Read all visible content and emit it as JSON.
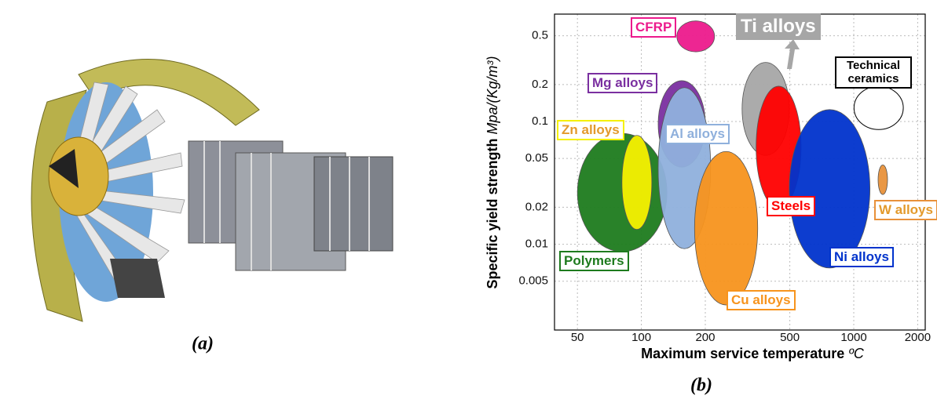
{
  "caption_a": "(a)",
  "chart_data": {
    "type": "region",
    "caption": "(b)",
    "xlabel": "Maximum service temperature",
    "xunit": "ºC",
    "ylabel": "Specific yield strength",
    "yunit": "Mpa/(Kg/m³)",
    "xscale": "log",
    "yscale": "log",
    "grid": true,
    "xlim": [
      39,
      2170
    ],
    "ylim": [
      0.002,
      0.75
    ],
    "xticks": [
      50,
      100,
      200,
      500,
      1000,
      2000
    ],
    "yticks": [
      0.005,
      0.01,
      0.02,
      0.05,
      0.1,
      0.2,
      0.5
    ],
    "regions": [
      {
        "name": "Polymers",
        "color": "#1e7b1e",
        "x": [
          50,
          132
        ],
        "y": [
          0.0087,
          0.08
        ]
      },
      {
        "name": "Zn alloys",
        "color": "#f5f000",
        "x": [
          81,
          112
        ],
        "y": [
          0.0132,
          0.077
        ]
      },
      {
        "name": "Mg alloys",
        "color": "#7a2fa0",
        "x": [
          120,
          200
        ],
        "y": [
          0.0425,
          0.215
        ]
      },
      {
        "name": "Al alloys",
        "color": "#8fb0dc",
        "x": [
          120,
          212
        ],
        "y": [
          0.0092,
          0.189
        ]
      },
      {
        "name": "CFRP",
        "color": "#ec1a8c",
        "x": [
          147,
          221
        ],
        "y": [
          0.37,
          0.66
        ]
      },
      {
        "name": "Cu alloys",
        "color": "#f7941d",
        "x": [
          178,
          353
        ],
        "y": [
          0.0032,
          0.057
        ]
      },
      {
        "name": "Ti alloys",
        "color": "#a6a6a6",
        "x": [
          298,
          497
        ],
        "y": [
          0.053,
          0.303
        ]
      },
      {
        "name": "Steels",
        "color": "#ff0000",
        "x": [
          347,
          565
        ],
        "y": [
          0.0197,
          0.194
        ]
      },
      {
        "name": "Ni alloys",
        "color": "#0033cc",
        "x": [
          497,
          1192
        ],
        "y": [
          0.0064,
          0.125
        ]
      },
      {
        "name": "W alloys",
        "color": "#e8913a",
        "x": [
          1302,
          1442
        ],
        "y": [
          0.0254,
          0.0443
        ]
      },
      {
        "name": "Technical ceramics",
        "color": "#000000",
        "x": [
          1003,
          1711
        ],
        "y": [
          0.086,
          0.194
        ]
      }
    ]
  }
}
